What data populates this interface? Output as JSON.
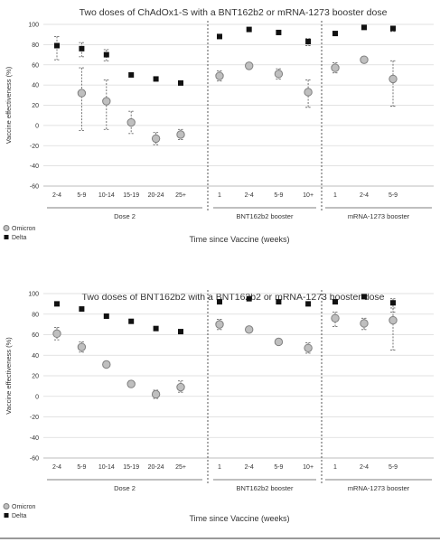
{
  "chart_data": [
    {
      "type": "scatter",
      "title": "Two doses of ChAdOx1-S with a BNT162b2 or mRNA-1273 booster dose",
      "ylabel": "Vaccine effectiveness (%)",
      "xlabel": "Time since Vaccine (weeks)",
      "ylim": [
        -60,
        100
      ],
      "yticks": [
        -60,
        -40,
        -20,
        0,
        20,
        40,
        60,
        80,
        100
      ],
      "grid": true,
      "legend_position": "bottom-left",
      "groups": [
        {
          "label": "Dose 2",
          "categories": [
            "2-4",
            "5-9",
            "10-14",
            "15-19",
            "20-24",
            "25+"
          ]
        },
        {
          "label": "BNT162b2 booster",
          "categories": [
            "1",
            "2-4",
            "5-9",
            "10+"
          ]
        },
        {
          "label": "mRNA-1273 booster",
          "categories": [
            "1",
            "2-4",
            "5-9"
          ]
        }
      ],
      "series": [
        {
          "name": "Omicron",
          "marker": "circle",
          "values": [
            null,
            32,
            24,
            3,
            -13,
            -9,
            49,
            59,
            51,
            33,
            57,
            65,
            46
          ],
          "lower": [
            null,
            -5,
            -4,
            -8,
            -19,
            -14,
            44,
            56,
            46,
            18,
            52,
            62,
            19
          ],
          "upper": [
            null,
            57,
            45,
            14,
            -7,
            -4,
            54,
            62,
            56,
            45,
            62,
            68,
            64
          ]
        },
        {
          "name": "Delta",
          "marker": "square",
          "values": [
            79,
            76,
            70,
            50,
            46,
            42,
            88,
            95,
            92,
            83,
            91,
            97,
            96
          ],
          "lower": [
            65,
            68,
            64,
            null,
            null,
            null,
            null,
            null,
            null,
            79,
            null,
            null,
            93
          ],
          "upper": [
            88,
            82,
            75,
            null,
            null,
            null,
            null,
            null,
            null,
            86,
            null,
            null,
            98
          ]
        }
      ]
    },
    {
      "type": "scatter",
      "title": "Two doses of BNT162b2 with a BNT162b2 or mRNA-1273 booster dose",
      "ylabel": "Vaccine effectiveness (%)",
      "xlabel": "Time since Vaccine (weeks)",
      "ylim": [
        -60,
        100
      ],
      "yticks": [
        -60,
        -40,
        -20,
        0,
        20,
        40,
        60,
        80,
        100
      ],
      "grid": true,
      "legend_position": "bottom-left",
      "groups": [
        {
          "label": "Dose 2",
          "categories": [
            "2-4",
            "5-9",
            "10-14",
            "15-19",
            "20-24",
            "25+"
          ]
        },
        {
          "label": "BNT162b2 booster",
          "categories": [
            "1",
            "2-4",
            "5-9",
            "10+"
          ]
        },
        {
          "label": "mRNA-1273 booster",
          "categories": [
            "1",
            "2-4",
            "5-9"
          ]
        }
      ],
      "series": [
        {
          "name": "Omicron",
          "marker": "circle",
          "values": [
            61,
            48,
            31,
            12,
            2,
            9,
            70,
            65,
            53,
            47,
            76,
            71,
            74
          ],
          "lower": [
            55,
            43,
            28,
            9,
            -2,
            4,
            65,
            63,
            51,
            42,
            68,
            65,
            45
          ],
          "upper": [
            67,
            53,
            34,
            15,
            6,
            15,
            75,
            67,
            55,
            52,
            82,
            76,
            86
          ]
        },
        {
          "name": "Delta",
          "marker": "square",
          "values": [
            90,
            85,
            78,
            73,
            66,
            63,
            92,
            95,
            92,
            90,
            92,
            97,
            91
          ],
          "lower": [
            null,
            null,
            null,
            null,
            null,
            null,
            null,
            null,
            null,
            null,
            null,
            null,
            82
          ],
          "upper": [
            null,
            null,
            null,
            null,
            null,
            null,
            null,
            null,
            null,
            null,
            null,
            null,
            95
          ]
        }
      ]
    }
  ]
}
